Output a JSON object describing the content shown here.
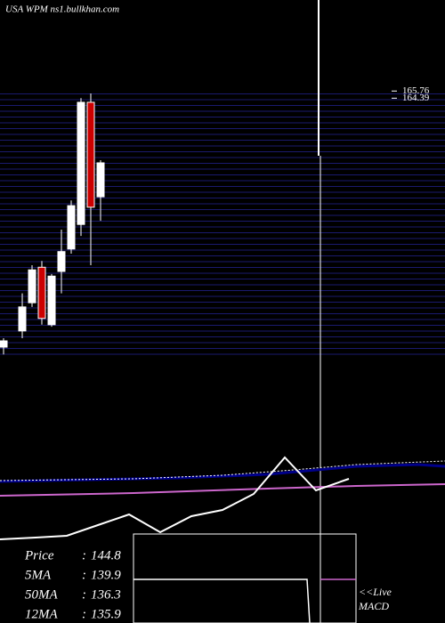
{
  "chart_data": {
    "type": "candlestick",
    "title": "USA WPM ns1.bullkhan.com",
    "categories": [
      null,
      null,
      null,
      null,
      null,
      null,
      null,
      null,
      null,
      null
    ],
    "open": [
      116.7,
      119.8,
      125.2,
      132.0,
      121.0,
      131.2,
      135.5,
      140.2,
      163.6,
      145.5
    ],
    "close": [
      117.9,
      124.4,
      131.5,
      122.2,
      130.3,
      135.0,
      143.8,
      163.6,
      143.5,
      152.0
    ],
    "high": [
      118.4,
      127.0,
      132.4,
      133.2,
      130.7,
      139.2,
      144.8,
      164.4,
      165.3,
      152.5
    ],
    "low": [
      115.3,
      118.4,
      124.4,
      121.0,
      120.6,
      127.0,
      134.6,
      138.0,
      132.4,
      140.9
    ],
    "up_color": "#ffffff",
    "down_color": "#cc0000",
    "ylim": [
      115,
      167
    ],
    "yticks": [
      165.76,
      164.39
    ],
    "info": [
      {
        "label": "Price",
        "value": 144.8
      },
      {
        "label": "5MA",
        "value": 139.9
      },
      {
        "label": "50MA",
        "value": 136.3
      },
      {
        "label": "12MA",
        "value": 135.9
      }
    ],
    "separator": ":",
    "annotation": [
      "<<Live",
      "MACD"
    ]
  }
}
